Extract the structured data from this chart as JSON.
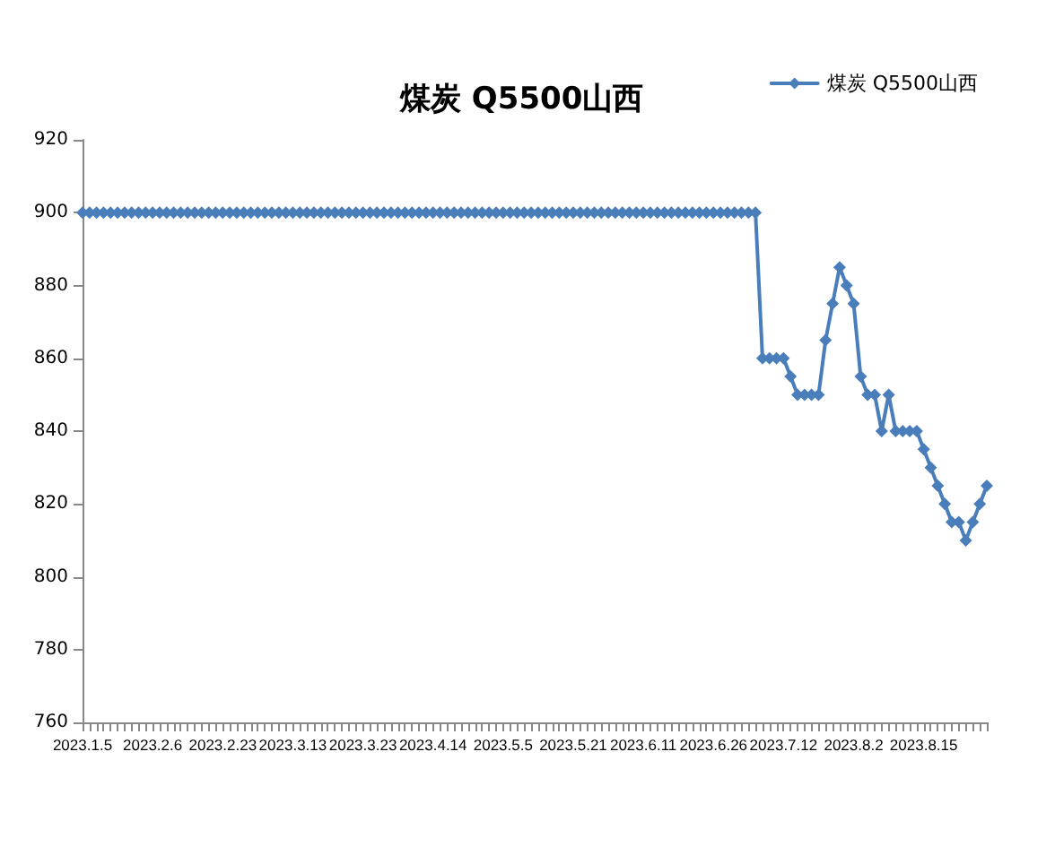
{
  "chart_data": {
    "type": "line",
    "title": "煤炭 Q5500山西",
    "categories": [
      "2023.1.5",
      null,
      null,
      null,
      null,
      null,
      null,
      null,
      null,
      null,
      "2023.2.6",
      null,
      null,
      null,
      null,
      null,
      null,
      null,
      null,
      null,
      "2023.2.23",
      null,
      null,
      null,
      null,
      null,
      null,
      null,
      null,
      null,
      "2023.3.13",
      null,
      null,
      null,
      null,
      null,
      null,
      null,
      null,
      null,
      "2023.3.23",
      null,
      null,
      null,
      null,
      null,
      null,
      null,
      null,
      null,
      "2023.4.14",
      null,
      null,
      null,
      null,
      null,
      null,
      null,
      null,
      null,
      "2023.5.5",
      null,
      null,
      null,
      null,
      null,
      null,
      null,
      null,
      null,
      "2023.5.21",
      null,
      null,
      null,
      null,
      null,
      null,
      null,
      null,
      null,
      "2023.6.11",
      null,
      null,
      null,
      null,
      null,
      null,
      null,
      null,
      null,
      "2023.6.26",
      null,
      null,
      null,
      null,
      null,
      null,
      null,
      null,
      null,
      "2023.7.12",
      null,
      null,
      null,
      null,
      null,
      null,
      null,
      null,
      null,
      "2023.8.2",
      null,
      null,
      null,
      null,
      null,
      null,
      null,
      null,
      null,
      "2023.8.15",
      null,
      null,
      null,
      null,
      null,
      null,
      null,
      null,
      null
    ],
    "series": [
      {
        "name": "煤炭 Q5500山西",
        "color": "#4a7ebb",
        "values": [
          900,
          900,
          900,
          900,
          900,
          900,
          900,
          900,
          900,
          900,
          900,
          900,
          900,
          900,
          900,
          900,
          900,
          900,
          900,
          900,
          900,
          900,
          900,
          900,
          900,
          900,
          900,
          900,
          900,
          900,
          900,
          900,
          900,
          900,
          900,
          900,
          900,
          900,
          900,
          900,
          900,
          900,
          900,
          900,
          900,
          900,
          900,
          900,
          900,
          900,
          900,
          900,
          900,
          900,
          900,
          900,
          900,
          900,
          900,
          900,
          900,
          900,
          900,
          900,
          900,
          900,
          900,
          900,
          900,
          900,
          900,
          900,
          900,
          900,
          900,
          900,
          900,
          900,
          900,
          900,
          900,
          900,
          900,
          900,
          900,
          900,
          900,
          900,
          900,
          900,
          900,
          900,
          900,
          900,
          900,
          900,
          900,
          860,
          860,
          860,
          860,
          855,
          850,
          850,
          850,
          850,
          865,
          875,
          885,
          880,
          875,
          855,
          850,
          850,
          840,
          850,
          840,
          840,
          840,
          840,
          835,
          830,
          825,
          820,
          815,
          815,
          810,
          815,
          820,
          825
        ]
      }
    ],
    "ylim": [
      760,
      920
    ],
    "yticks": [
      760,
      780,
      800,
      820,
      840,
      860,
      880,
      900,
      920
    ],
    "grid": false,
    "legend": "top right",
    "marker": "diamond",
    "line_style": "solid"
  }
}
